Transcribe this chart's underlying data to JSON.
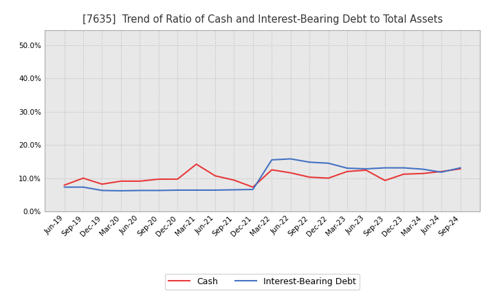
{
  "title": "[7635]  Trend of Ratio of Cash and Interest-Bearing Debt to Total Assets",
  "title_fontsize": 10.5,
  "x_labels": [
    "Jun-19",
    "Sep-19",
    "Dec-19",
    "Mar-20",
    "Jun-20",
    "Sep-20",
    "Dec-20",
    "Mar-21",
    "Jun-21",
    "Sep-21",
    "Dec-21",
    "Mar-22",
    "Jun-22",
    "Sep-22",
    "Dec-22",
    "Mar-23",
    "Jun-23",
    "Sep-23",
    "Dec-23",
    "Mar-24",
    "Jun-24",
    "Sep-24"
  ],
  "cash": [
    0.079,
    0.1,
    0.082,
    0.091,
    0.091,
    0.097,
    0.097,
    0.142,
    0.107,
    0.094,
    0.073,
    0.125,
    0.116,
    0.103,
    0.1,
    0.12,
    0.124,
    0.093,
    0.112,
    0.114,
    0.12,
    0.128
  ],
  "interest_bearing_debt": [
    0.073,
    0.073,
    0.063,
    0.062,
    0.063,
    0.063,
    0.064,
    0.064,
    0.064,
    0.065,
    0.066,
    0.155,
    0.158,
    0.148,
    0.145,
    0.13,
    0.128,
    0.131,
    0.131,
    0.127,
    0.118,
    0.131
  ],
  "cash_color": "#e8393a",
  "interest_bearing_debt_color": "#4472c4",
  "ylim": [
    0.0,
    0.545
  ],
  "yticks": [
    0.0,
    0.1,
    0.2,
    0.3,
    0.4,
    0.5
  ],
  "plot_bg_color": "#e8e8e8",
  "background_color": "#ffffff",
  "grid_color": "#bbbbbb",
  "legend_cash": "Cash",
  "legend_ibd": "Interest-Bearing Debt"
}
